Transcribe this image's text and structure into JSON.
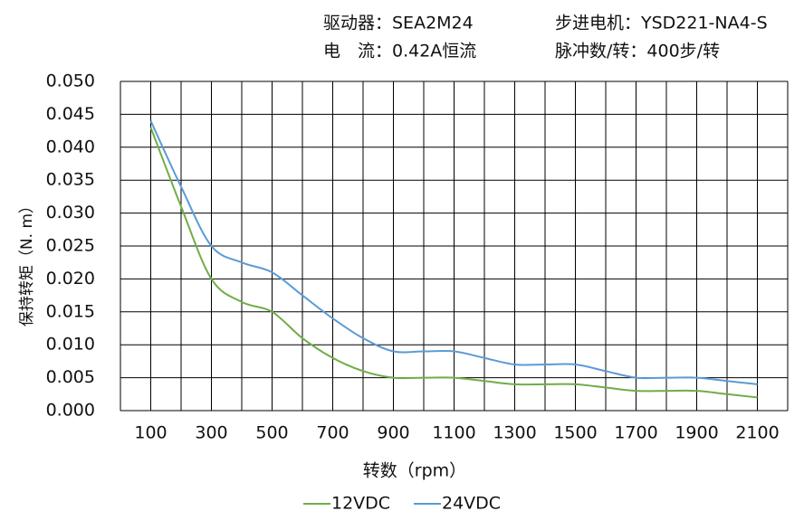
{
  "header": {
    "driver": "驱动器：SEA2M24",
    "current": "电　流：0.42A恒流",
    "motor": "步进电机：YSD221-NA4-S",
    "pulses": "脉冲数/转：400步/转"
  },
  "chart_data": {
    "type": "line",
    "x_label": "转数（rpm）",
    "y_label": "保持转矩（N. m）",
    "x": [
      100,
      200,
      300,
      400,
      500,
      600,
      700,
      800,
      900,
      1000,
      1100,
      1200,
      1300,
      1400,
      1500,
      1600,
      1700,
      1800,
      1900,
      2000,
      2100
    ],
    "series": [
      {
        "name": "12VDC",
        "color": "#70ad47",
        "values": [
          0.043,
          0.031,
          0.02,
          0.0165,
          0.015,
          0.011,
          0.008,
          0.006,
          0.005,
          0.005,
          0.005,
          0.0045,
          0.004,
          0.004,
          0.004,
          0.0035,
          0.003,
          0.003,
          0.003,
          0.0025,
          0.002
        ]
      },
      {
        "name": "24VDC",
        "color": "#5b9bd5",
        "values": [
          0.044,
          0.034,
          0.025,
          0.0225,
          0.021,
          0.0175,
          0.014,
          0.011,
          0.009,
          0.009,
          0.009,
          0.008,
          0.007,
          0.007,
          0.007,
          0.006,
          0.005,
          0.005,
          0.005,
          0.0045,
          0.004
        ]
      }
    ],
    "xlim": [
      0,
      2200
    ],
    "xticks": [
      100,
      300,
      500,
      700,
      900,
      1100,
      1300,
      1500,
      1700,
      1900,
      2100
    ],
    "x_grid_step": 100,
    "ylim": [
      0,
      0.05
    ],
    "yticks": [
      {
        "value": 0,
        "label": "0.000"
      },
      {
        "value": 0.005,
        "label": "0.005"
      },
      {
        "value": 0.01,
        "label": "0.010"
      },
      {
        "value": 0.015,
        "label": "0.015"
      },
      {
        "value": 0.02,
        "label": "0.020"
      },
      {
        "value": 0.025,
        "label": "0.025"
      },
      {
        "value": 0.03,
        "label": "0.030"
      },
      {
        "value": 0.035,
        "label": "0.035"
      },
      {
        "value": 0.04,
        "label": "0.040"
      },
      {
        "value": 0.045,
        "label": "0.045"
      },
      {
        "value": 0.05,
        "label": "0.050"
      }
    ],
    "grid": true,
    "smooth": true,
    "legend": "bottom"
  }
}
